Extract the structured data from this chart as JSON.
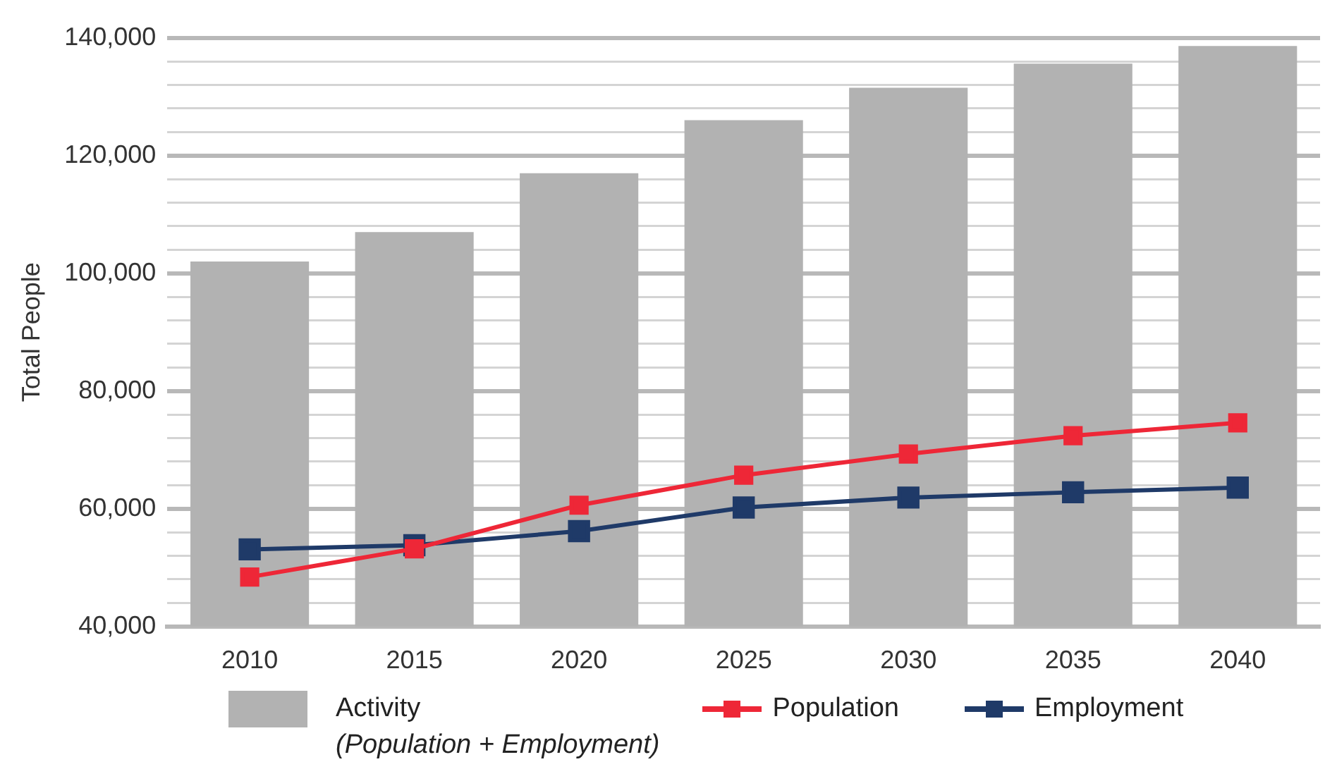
{
  "chart_data": {
    "type": "bar",
    "ylabel": "Total People",
    "categories": [
      "2010",
      "2015",
      "2020",
      "2025",
      "2030",
      "2035",
      "2040"
    ],
    "series": [
      {
        "name": "Activity\n(Population + Employment)",
        "color": "#b2b2b2",
        "values": [
          102000,
          107000,
          117000,
          126000,
          131500,
          135600,
          138600
        ]
      },
      {
        "name": "Population",
        "type": "line",
        "color": "#ee2737",
        "values": [
          48400,
          53200,
          60600,
          65700,
          69300,
          72400,
          74600
        ]
      },
      {
        "name": "Employment",
        "type": "line",
        "color": "#1f3a68",
        "values": [
          53100,
          53800,
          56200,
          60200,
          61900,
          62800,
          63600
        ]
      }
    ],
    "ylim": [
      40000,
      140000
    ],
    "yticks": [
      {
        "value": 40000,
        "label": "40,000"
      },
      {
        "value": 44000,
        "label": null
      },
      {
        "value": 48000,
        "label": null
      },
      {
        "value": 52000,
        "label": null
      },
      {
        "value": 56000,
        "label": null
      },
      {
        "value": 60000,
        "label": "60,000"
      },
      {
        "value": 64000,
        "label": null
      },
      {
        "value": 68000,
        "label": null
      },
      {
        "value": 72000,
        "label": null
      },
      {
        "value": 76000,
        "label": null
      },
      {
        "value": 80000,
        "label": "80,000"
      },
      {
        "value": 84000,
        "label": null
      },
      {
        "value": 88000,
        "label": null
      },
      {
        "value": 92000,
        "label": null
      },
      {
        "value": 96000,
        "label": null
      },
      {
        "value": 100000,
        "label": "100,000"
      },
      {
        "value": 104000,
        "label": null
      },
      {
        "value": 108000,
        "label": null
      },
      {
        "value": 112000,
        "label": null
      },
      {
        "value": 116000,
        "label": null
      },
      {
        "value": 120000,
        "label": "120,000"
      },
      {
        "value": 124000,
        "label": null
      },
      {
        "value": 128000,
        "label": null
      },
      {
        "value": 132000,
        "label": null
      },
      {
        "value": 136000,
        "label": null
      },
      {
        "value": 140000,
        "label": "140,000"
      }
    ],
    "grid": "y",
    "legend": "bottom",
    "marker": "square",
    "line_style": "solid"
  }
}
